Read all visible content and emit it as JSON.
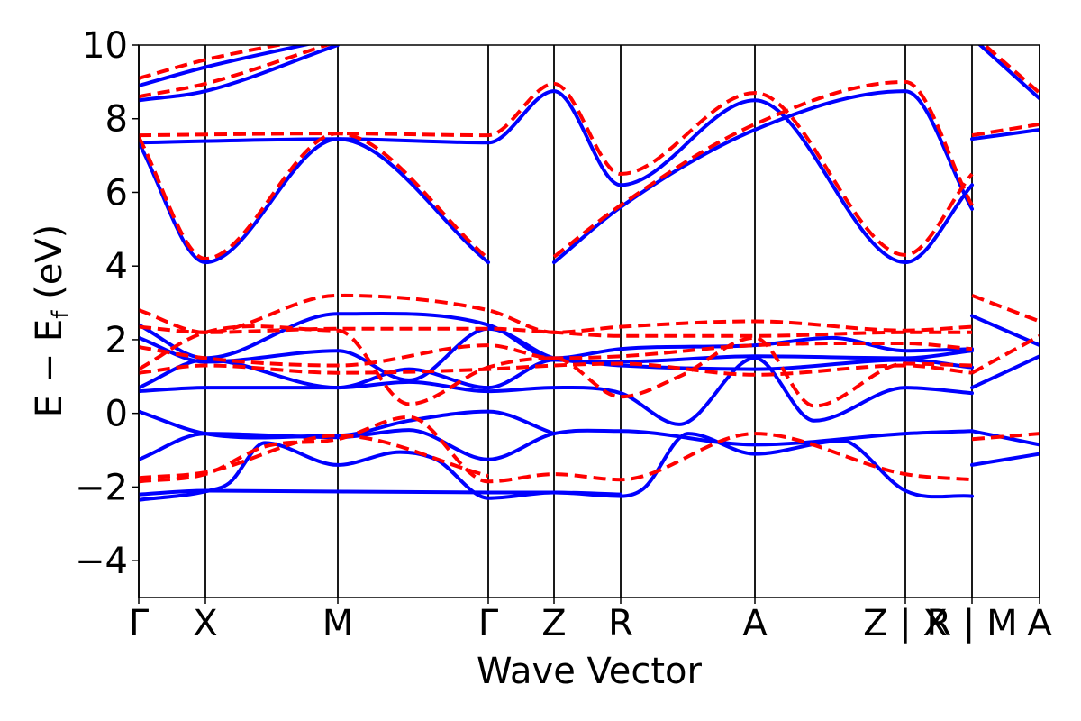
{
  "chart_data": {
    "type": "line",
    "title": "",
    "xlabel": "Wave Vector",
    "ylabel_main": "E − E",
    "ylabel_sub": "f",
    "ylabel_unit": " (eV)",
    "ylim": [
      -5,
      10
    ],
    "y_ticks": [
      -4,
      -2,
      0,
      2,
      4,
      6,
      8,
      10
    ],
    "y_tick_labels": [
      "−4",
      "−2",
      "0",
      "2",
      "4",
      "6",
      "8",
      "10"
    ],
    "xlim": [
      0,
      1
    ],
    "k_points": [
      0,
      0.074,
      0.221,
      0.388,
      0.461,
      0.535,
      0.684,
      0.851,
      0.925,
      1.0
    ],
    "k_labels": [
      "Γ",
      "X",
      "M",
      "Γ",
      "Z",
      "R",
      "A",
      "Z | X",
      "R | M",
      "A"
    ],
    "grid": false,
    "legend": "none",
    "colors": {
      "series1": "#0000ff",
      "series2": "#ff0000",
      "frame": "#000000"
    },
    "series": [
      {
        "style": "solid",
        "color": "#0000ff",
        "bands": [
          [
            [
              0,
              -2.35
            ],
            [
              0.074,
              -2.12
            ],
            [
              0.1,
              -1.9
            ],
            [
              0.14,
              -0.8
            ],
            [
              0.221,
              -1.4
            ],
            [
              0.29,
              -1.05
            ],
            [
              0.33,
              -1.25
            ],
            [
              0.388,
              -2.3
            ],
            [
              0.461,
              -2.15
            ],
            [
              0.535,
              -2.25
            ],
            [
              0.56,
              -2.05
            ],
            [
              0.61,
              -0.55
            ],
            [
              0.684,
              -1.1
            ],
            [
              0.78,
              -0.75
            ],
            [
              0.79,
              -0.8
            ],
            [
              0.851,
              -2.1
            ],
            [
              0.925,
              -2.25
            ]
          ],
          [
            [
              0,
              -2.2
            ],
            [
              0.074,
              -2.1
            ],
            [
              0.388,
              -2.15
            ],
            [
              0.461,
              -2.15
            ],
            [
              0.535,
              -2.2
            ]
          ],
          [
            [
              0,
              -1.25
            ],
            [
              0.074,
              -0.55
            ],
            [
              0.221,
              -0.65
            ],
            [
              0.3,
              -0.45
            ],
            [
              0.388,
              -1.25
            ],
            [
              0.461,
              -0.55
            ],
            [
              0.535,
              -0.48
            ],
            [
              0.684,
              -0.85
            ],
            [
              0.851,
              -0.55
            ],
            [
              0.925,
              -0.48
            ]
          ],
          [
            [
              0,
              0.05
            ],
            [
              0.074,
              -0.55
            ],
            [
              0.221,
              -0.6
            ],
            [
              0.3,
              -0.2
            ],
            [
              0.388,
              0.05
            ],
            [
              0.461,
              -0.55
            ]
          ],
          [
            [
              0,
              0.6
            ],
            [
              0.074,
              0.7
            ],
            [
              0.221,
              0.7
            ],
            [
              0.3,
              0.85
            ],
            [
              0.388,
              0.6
            ],
            [
              0.461,
              0.7
            ],
            [
              0.535,
              0.55
            ],
            [
              0.6,
              -0.3
            ],
            [
              0.684,
              1.5
            ],
            [
              0.75,
              -0.2
            ],
            [
              0.851,
              0.7
            ],
            [
              0.925,
              0.55
            ]
          ],
          [
            [
              0,
              0.7
            ],
            [
              0.074,
              1.45
            ],
            [
              0.221,
              0.7
            ],
            [
              0.3,
              1.2
            ],
            [
              0.388,
              0.7
            ],
            [
              0.461,
              1.45
            ],
            [
              0.535,
              1.3
            ],
            [
              0.684,
              1.2
            ],
            [
              0.851,
              1.45
            ],
            [
              0.925,
              1.25
            ]
          ],
          [
            [
              0,
              2.05
            ],
            [
              0.074,
              1.4
            ],
            [
              0.221,
              1.7
            ],
            [
              0.3,
              0.9
            ],
            [
              0.388,
              2.3
            ],
            [
              0.461,
              1.5
            ],
            [
              0.535,
              1.4
            ],
            [
              0.684,
              1.55
            ],
            [
              0.851,
              1.5
            ],
            [
              0.925,
              1.7
            ]
          ],
          [
            [
              0,
              2.4
            ],
            [
              0.074,
              1.5
            ],
            [
              0.221,
              2.7
            ],
            [
              0.388,
              2.4
            ],
            [
              0.461,
              1.5
            ],
            [
              0.535,
              1.75
            ],
            [
              0.684,
              1.85
            ],
            [
              0.77,
              2.05
            ],
            [
              0.851,
              1.7
            ],
            [
              0.925,
              1.75
            ]
          ],
          [
            [
              0,
              7.35
            ],
            [
              0.074,
              4.1
            ],
            [
              0.221,
              7.45
            ],
            [
              0.388,
              4.1
            ]
          ],
          [
            [
              0,
              7.35
            ],
            [
              0.221,
              7.45
            ],
            [
              0.388,
              7.35
            ],
            [
              0.461,
              8.75
            ],
            [
              0.535,
              6.2
            ],
            [
              0.684,
              8.5
            ],
            [
              0.851,
              4.1
            ],
            [
              0.925,
              6.2
            ]
          ],
          [
            [
              0.461,
              4.1
            ],
            [
              0.535,
              5.6
            ],
            [
              0.684,
              7.7
            ],
            [
              0.851,
              8.75
            ],
            [
              0.925,
              5.55
            ]
          ],
          [
            [
              0,
              8.5
            ],
            [
              0.074,
              8.75
            ],
            [
              0.221,
              10.0
            ]
          ],
          [
            [
              0,
              8.9
            ],
            [
              0.074,
              9.4
            ],
            [
              0.221,
              10.2
            ]
          ],
          [
            [
              0.925,
              7.45
            ],
            [
              1.0,
              7.7
            ]
          ],
          [
            [
              0.925,
              10.2
            ],
            [
              1.0,
              8.55
            ]
          ],
          [
            [
              0.925,
              2.65
            ],
            [
              1.0,
              1.85
            ]
          ],
          [
            [
              0.925,
              0.7
            ],
            [
              1.0,
              1.55
            ]
          ],
          [
            [
              0.925,
              -1.4
            ],
            [
              1.0,
              -1.1
            ]
          ],
          [
            [
              0.925,
              -0.48
            ],
            [
              1.0,
              -0.85
            ]
          ]
        ]
      },
      {
        "style": "dashed",
        "color": "#ff0000",
        "bands": [
          [
            [
              0,
              -1.85
            ],
            [
              0.074,
              -1.65
            ],
            [
              0.14,
              -0.9
            ],
            [
              0.221,
              -0.7
            ],
            [
              0.3,
              -0.1
            ],
            [
              0.388,
              -1.85
            ],
            [
              0.461,
              -1.65
            ],
            [
              0.535,
              -1.8
            ],
            [
              0.684,
              -0.55
            ],
            [
              0.851,
              -1.65
            ],
            [
              0.925,
              -1.8
            ]
          ],
          [
            [
              0,
              -1.75
            ],
            [
              0.074,
              -1.6
            ],
            [
              0.221,
              -0.6
            ],
            [
              0.388,
              -1.7
            ]
          ],
          [
            [
              0,
              1.1
            ],
            [
              0.074,
              1.3
            ],
            [
              0.221,
              1.1
            ],
            [
              0.388,
              1.2
            ],
            [
              0.461,
              1.3
            ],
            [
              0.535,
              1.35
            ],
            [
              0.684,
              1.05
            ],
            [
              0.851,
              1.3
            ],
            [
              0.925,
              1.1
            ]
          ],
          [
            [
              0,
              1.2
            ],
            [
              0.074,
              2.2
            ],
            [
              0.221,
              2.25
            ],
            [
              0.3,
              0.25
            ],
            [
              0.388,
              1.25
            ],
            [
              0.461,
              1.5
            ],
            [
              0.535,
              0.45
            ],
            [
              0.6,
              1.0
            ],
            [
              0.684,
              2.05
            ],
            [
              0.75,
              0.2
            ],
            [
              0.851,
              1.35
            ],
            [
              0.925,
              1.3
            ]
          ],
          [
            [
              0,
              1.8
            ],
            [
              0.074,
              1.5
            ],
            [
              0.221,
              1.3
            ],
            [
              0.388,
              1.85
            ],
            [
              0.461,
              1.5
            ],
            [
              0.535,
              1.55
            ],
            [
              0.684,
              1.85
            ],
            [
              0.851,
              1.9
            ],
            [
              0.925,
              1.75
            ]
          ],
          [
            [
              0,
              2.35
            ],
            [
              0.074,
              2.2
            ],
            [
              0.221,
              3.2
            ],
            [
              0.388,
              2.8
            ],
            [
              0.461,
              2.2
            ],
            [
              0.535,
              2.35
            ],
            [
              0.684,
              2.5
            ],
            [
              0.851,
              2.25
            ],
            [
              0.925,
              2.35
            ]
          ],
          [
            [
              0,
              2.8
            ],
            [
              0.074,
              2.2
            ],
            [
              0.221,
              2.3
            ],
            [
              0.388,
              2.3
            ],
            [
              0.461,
              2.2
            ],
            [
              0.535,
              2.1
            ],
            [
              0.684,
              2.1
            ],
            [
              0.851,
              2.2
            ],
            [
              0.925,
              2.2
            ]
          ],
          [
            [
              0,
              7.5
            ],
            [
              0.074,
              4.2
            ],
            [
              0.221,
              7.6
            ],
            [
              0.388,
              4.2
            ]
          ],
          [
            [
              0,
              7.55
            ],
            [
              0.221,
              7.6
            ],
            [
              0.388,
              7.55
            ],
            [
              0.461,
              8.95
            ],
            [
              0.535,
              6.5
            ],
            [
              0.684,
              8.7
            ],
            [
              0.851,
              4.3
            ],
            [
              0.925,
              6.5
            ]
          ],
          [
            [
              0.461,
              4.25
            ],
            [
              0.535,
              5.65
            ],
            [
              0.684,
              7.85
            ],
            [
              0.851,
              9.0
            ],
            [
              0.925,
              5.65
            ]
          ],
          [
            [
              0,
              8.6
            ],
            [
              0.074,
              8.95
            ],
            [
              0.221,
              10.1
            ]
          ],
          [
            [
              0,
              9.1
            ],
            [
              0.074,
              9.6
            ],
            [
              0.221,
              10.3
            ]
          ],
          [
            [
              0.925,
              7.55
            ],
            [
              1.0,
              7.85
            ]
          ],
          [
            [
              0.925,
              10.3
            ],
            [
              1.0,
              8.7
            ]
          ],
          [
            [
              0.925,
              3.2
            ],
            [
              1.0,
              2.5
            ]
          ],
          [
            [
              0.925,
              1.1
            ],
            [
              1.0,
              2.1
            ]
          ],
          [
            [
              0.925,
              -0.7
            ],
            [
              1.0,
              -0.55
            ]
          ]
        ]
      }
    ]
  }
}
